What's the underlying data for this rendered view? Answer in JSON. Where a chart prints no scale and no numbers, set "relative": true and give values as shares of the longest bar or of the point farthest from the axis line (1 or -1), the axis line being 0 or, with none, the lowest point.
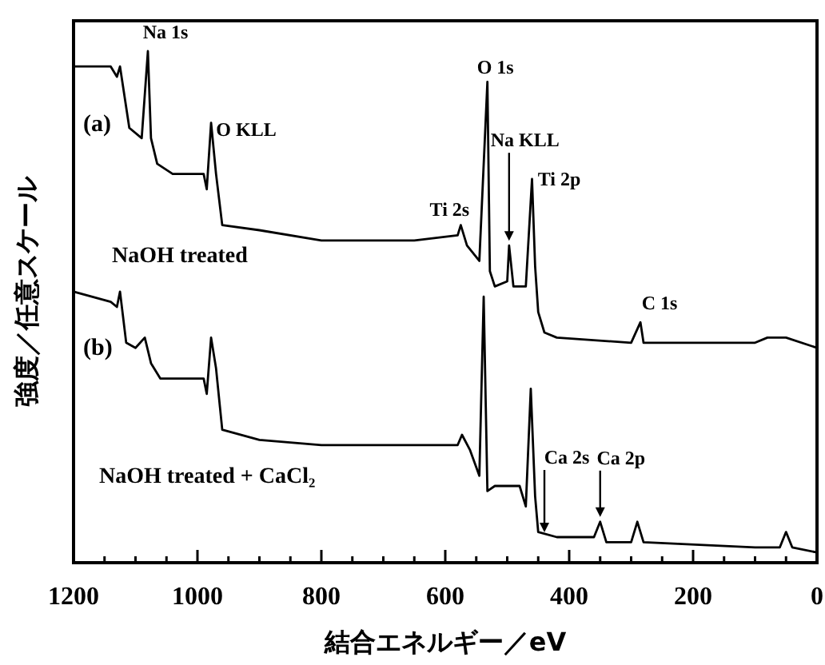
{
  "chart_data": {
    "type": "line",
    "relative": true,
    "xlabel": "結合エネルギー／eV",
    "ylabel": "強度／任意スケール",
    "xlim": [
      1200,
      0
    ],
    "xticks": [
      1200,
      {
        "value": 1150,
        "label": null
      },
      {
        "value": 1100,
        "label": null
      },
      {
        "value": 1050,
        "label": null
      },
      1000,
      {
        "value": 950,
        "label": null
      },
      {
        "value": 900,
        "label": null
      },
      {
        "value": 850,
        "label": null
      },
      800,
      {
        "value": 750,
        "label": null
      },
      {
        "value": 700,
        "label": null
      },
      {
        "value": 650,
        "label": null
      },
      600,
      {
        "value": 550,
        "label": null
      },
      {
        "value": 500,
        "label": null
      },
      {
        "value": 450,
        "label": null
      },
      400,
      {
        "value": 350,
        "label": null
      },
      {
        "value": 300,
        "label": null
      },
      {
        "value": 250,
        "label": null
      },
      200,
      {
        "value": 150,
        "label": null
      },
      {
        "value": 100,
        "label": null
      },
      {
        "value": 50,
        "label": null
      },
      0
    ],
    "grid": false,
    "line_style": "solid",
    "series": [
      {
        "name": "NaOH treated",
        "color": "#000000",
        "x": [
          1200,
          1140,
          1130,
          1125,
          1110,
          1090,
          1080,
          1075,
          1065,
          1040,
          990,
          985,
          978,
          970,
          960,
          900,
          800,
          650,
          580,
          575,
          565,
          545,
          532,
          528,
          520,
          500,
          497,
          490,
          470,
          460,
          455,
          450,
          440,
          420,
          300,
          285,
          280,
          100,
          80,
          60,
          50,
          0
        ],
        "values": [
          0.97,
          0.97,
          0.95,
          0.97,
          0.85,
          0.83,
          1.0,
          0.83,
          0.78,
          0.76,
          0.76,
          0.73,
          0.86,
          0.76,
          0.66,
          0.65,
          0.63,
          0.63,
          0.64,
          0.66,
          0.62,
          0.59,
          0.94,
          0.57,
          0.54,
          0.55,
          0.62,
          0.54,
          0.54,
          0.75,
          0.58,
          0.49,
          0.45,
          0.44,
          0.43,
          0.47,
          0.43,
          0.43,
          0.44,
          0.44,
          0.44,
          0.42
        ]
      },
      {
        "name": "NaOH treated + CaCl₂",
        "color": "#000000",
        "x": [
          1200,
          1140,
          1130,
          1125,
          1115,
          1100,
          1085,
          1075,
          1060,
          990,
          985,
          978,
          970,
          960,
          900,
          800,
          650,
          580,
          573,
          560,
          545,
          538,
          532,
          520,
          480,
          470,
          462,
          455,
          450,
          420,
          360,
          350,
          340,
          300,
          290,
          280,
          100,
          60,
          50,
          40,
          0
        ],
        "values": [
          0.53,
          0.51,
          0.5,
          0.53,
          0.43,
          0.42,
          0.44,
          0.39,
          0.36,
          0.36,
          0.33,
          0.44,
          0.38,
          0.26,
          0.24,
          0.23,
          0.23,
          0.23,
          0.25,
          0.22,
          0.17,
          0.52,
          0.14,
          0.15,
          0.15,
          0.11,
          0.34,
          0.13,
          0.06,
          0.05,
          0.05,
          0.08,
          0.04,
          0.04,
          0.08,
          0.04,
          0.03,
          0.03,
          0.06,
          0.03,
          0.02
        ]
      }
    ],
    "annotations": [
      {
        "text": "Na 1s",
        "x": 1080,
        "y": 1.0
      },
      {
        "text": "O KLL",
        "x": 978,
        "y": 0.86
      },
      {
        "text": "Ti 2s",
        "x": 575,
        "y": 0.66
      },
      {
        "text": "O 1s",
        "x": 532,
        "y": 0.94
      },
      {
        "text": "Na KLL",
        "x": 497,
        "y": 0.62
      },
      {
        "text": "Ti 2p",
        "x": 460,
        "y": 0.75
      },
      {
        "text": "C 1s",
        "x": 285,
        "y": 0.47
      },
      {
        "text": "Ca 2s",
        "x": 440,
        "y": 0.05
      },
      {
        "text": "Ca 2p",
        "x": 350,
        "y": 0.08
      },
      "(a)",
      "(b)"
    ]
  }
}
